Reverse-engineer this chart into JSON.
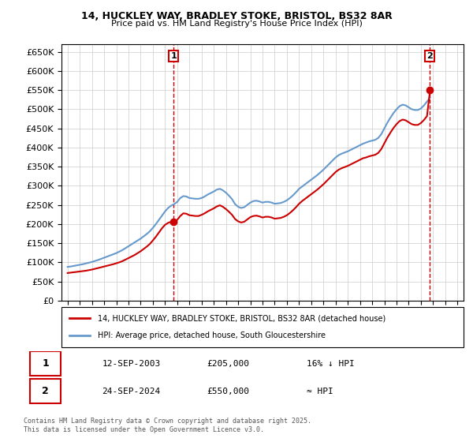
{
  "title_line1": "14, HUCKLEY WAY, BRADLEY STOKE, BRISTOL, BS32 8AR",
  "title_line2": "Price paid vs. HM Land Registry's House Price Index (HPI)",
  "ylabel": "",
  "xlabel": "",
  "background_color": "#ffffff",
  "plot_bg_color": "#ffffff",
  "grid_color": "#cccccc",
  "red_line_color": "#cc0000",
  "blue_line_color": "#6699cc",
  "sale1_date_num": 2003.7,
  "sale1_price": 205000,
  "sale1_label": "1",
  "sale2_date_num": 2024.73,
  "sale2_price": 550000,
  "sale2_label": "2",
  "ylim_min": 0,
  "ylim_max": 670000,
  "ytick_step": 50000,
  "xlim_min": 1994.5,
  "xlim_max": 2027.5,
  "legend_label_red": "14, HUCKLEY WAY, BRADLEY STOKE, BRISTOL, BS32 8AR (detached house)",
  "legend_label_blue": "HPI: Average price, detached house, South Gloucestershire",
  "annotation1_text": "1",
  "annotation2_text": "2",
  "table_row1": [
    "1",
    "12-SEP-2003",
    "£205,000",
    "16% ↓ HPI"
  ],
  "table_row2": [
    "2",
    "24-SEP-2024",
    "£550,000",
    "≈ HPI"
  ],
  "footnote": "Contains HM Land Registry data © Crown copyright and database right 2025.\nThis data is licensed under the Open Government Licence v3.0.",
  "hpi_years": [
    1995,
    1995.25,
    1995.5,
    1995.75,
    1996,
    1996.25,
    1996.5,
    1996.75,
    1997,
    1997.25,
    1997.5,
    1997.75,
    1998,
    1998.25,
    1998.5,
    1998.75,
    1999,
    1999.25,
    1999.5,
    1999.75,
    2000,
    2000.25,
    2000.5,
    2000.75,
    2001,
    2001.25,
    2001.5,
    2001.75,
    2002,
    2002.25,
    2002.5,
    2002.75,
    2003,
    2003.25,
    2003.5,
    2003.75,
    2004,
    2004.25,
    2004.5,
    2004.75,
    2005,
    2005.25,
    2005.5,
    2005.75,
    2006,
    2006.25,
    2006.5,
    2006.75,
    2007,
    2007.25,
    2007.5,
    2007.75,
    2008,
    2008.25,
    2008.5,
    2008.75,
    2009,
    2009.25,
    2009.5,
    2009.75,
    2010,
    2010.25,
    2010.5,
    2010.75,
    2011,
    2011.25,
    2011.5,
    2011.75,
    2012,
    2012.25,
    2012.5,
    2012.75,
    2013,
    2013.25,
    2013.5,
    2013.75,
    2014,
    2014.25,
    2014.5,
    2014.75,
    2015,
    2015.25,
    2015.5,
    2015.75,
    2016,
    2016.25,
    2016.5,
    2016.75,
    2017,
    2017.25,
    2017.5,
    2017.75,
    2018,
    2018.25,
    2018.5,
    2018.75,
    2019,
    2019.25,
    2019.5,
    2019.75,
    2020,
    2020.25,
    2020.5,
    2020.75,
    2021,
    2021.25,
    2021.5,
    2021.75,
    2022,
    2022.25,
    2022.5,
    2022.75,
    2023,
    2023.25,
    2023.5,
    2023.75,
    2024,
    2024.25,
    2024.5,
    2024.75
  ],
  "hpi_values": [
    88000,
    89000,
    90500,
    92000,
    93500,
    95000,
    97000,
    99000,
    101000,
    103500,
    106000,
    109000,
    112000,
    115000,
    118000,
    121000,
    124000,
    128000,
    132000,
    137000,
    142000,
    147000,
    152000,
    157000,
    162000,
    168000,
    174000,
    181000,
    190000,
    200000,
    211000,
    222000,
    233000,
    242000,
    248000,
    252000,
    258000,
    268000,
    273000,
    272000,
    268000,
    267000,
    266000,
    266000,
    268000,
    272000,
    277000,
    281000,
    285000,
    290000,
    292000,
    288000,
    282000,
    274000,
    265000,
    252000,
    245000,
    242000,
    244000,
    250000,
    256000,
    260000,
    261000,
    259000,
    256000,
    258000,
    258000,
    256000,
    253000,
    254000,
    255000,
    258000,
    262000,
    268000,
    275000,
    283000,
    292000,
    298000,
    304000,
    310000,
    316000,
    322000,
    328000,
    335000,
    342000,
    350000,
    358000,
    366000,
    374000,
    380000,
    384000,
    387000,
    390000,
    394000,
    398000,
    402000,
    406000,
    410000,
    413000,
    416000,
    418000,
    420000,
    425000,
    435000,
    450000,
    465000,
    478000,
    490000,
    500000,
    508000,
    512000,
    510000,
    505000,
    500000,
    498000,
    498000,
    502000,
    510000,
    520000,
    530000
  ],
  "price_years": [
    1995,
    1995.25,
    1995.5,
    1995.75,
    1996,
    1996.25,
    1996.5,
    1996.75,
    1997,
    1997.25,
    1997.5,
    1997.75,
    1998,
    1998.25,
    1998.5,
    1998.75,
    1999,
    1999.25,
    1999.5,
    1999.75,
    2000,
    2000.25,
    2000.5,
    2000.75,
    2001,
    2001.25,
    2001.5,
    2001.75,
    2002,
    2002.25,
    2002.5,
    2002.75,
    2003,
    2003.25,
    2003.5,
    2003.75,
    2004,
    2004.25,
    2004.5,
    2004.75,
    2005,
    2005.25,
    2005.5,
    2005.75,
    2006,
    2006.25,
    2006.5,
    2006.75,
    2007,
    2007.25,
    2007.5,
    2007.75,
    2008,
    2008.25,
    2008.5,
    2008.75,
    2009,
    2009.25,
    2009.5,
    2009.75,
    2010,
    2010.25,
    2010.5,
    2010.75,
    2011,
    2011.25,
    2011.5,
    2011.75,
    2012,
    2012.25,
    2012.5,
    2012.75,
    2013,
    2013.25,
    2013.5,
    2013.75,
    2014,
    2014.25,
    2014.5,
    2014.75,
    2015,
    2015.25,
    2015.5,
    2015.75,
    2016,
    2016.25,
    2016.5,
    2016.75,
    2017,
    2017.25,
    2017.5,
    2017.75,
    2018,
    2018.25,
    2018.5,
    2018.75,
    2019,
    2019.25,
    2019.5,
    2019.75,
    2020,
    2020.25,
    2020.5,
    2020.75,
    2021,
    2021.25,
    2021.5,
    2021.75,
    2022,
    2022.25,
    2022.5,
    2022.75,
    2023,
    2023.25,
    2023.5,
    2023.75,
    2024,
    2024.25,
    2024.5,
    2024.75
  ],
  "price_paid_values": [
    72000,
    73000,
    74000,
    75000,
    76000,
    77000,
    78000,
    79500,
    81000,
    83000,
    85000,
    87000,
    89000,
    91000,
    93000,
    95000,
    97500,
    100000,
    103000,
    107000,
    111000,
    115000,
    119000,
    124000,
    129000,
    135000,
    141000,
    148000,
    157000,
    167000,
    178000,
    189000,
    198000,
    203000,
    206000,
    205000,
    211000,
    221000,
    228000,
    227000,
    223000,
    222000,
    221000,
    221000,
    224000,
    228000,
    233000,
    237000,
    241000,
    246000,
    249000,
    245000,
    239000,
    232000,
    224000,
    213000,
    207000,
    204000,
    206000,
    212000,
    218000,
    221000,
    222000,
    220000,
    217000,
    219000,
    219000,
    217000,
    214000,
    215000,
    216000,
    219000,
    223000,
    229000,
    236000,
    244000,
    253000,
    260000,
    266000,
    272000,
    278000,
    284000,
    290000,
    297000,
    304000,
    312000,
    320000,
    328000,
    336000,
    342000,
    346000,
    349000,
    352000,
    356000,
    360000,
    364000,
    368000,
    372000,
    374000,
    377000,
    379000,
    381000,
    386000,
    396000,
    411000,
    426000,
    439000,
    451000,
    461000,
    469000,
    473000,
    471000,
    466000,
    461000,
    459000,
    459000,
    464000,
    472000,
    482000,
    550000
  ]
}
